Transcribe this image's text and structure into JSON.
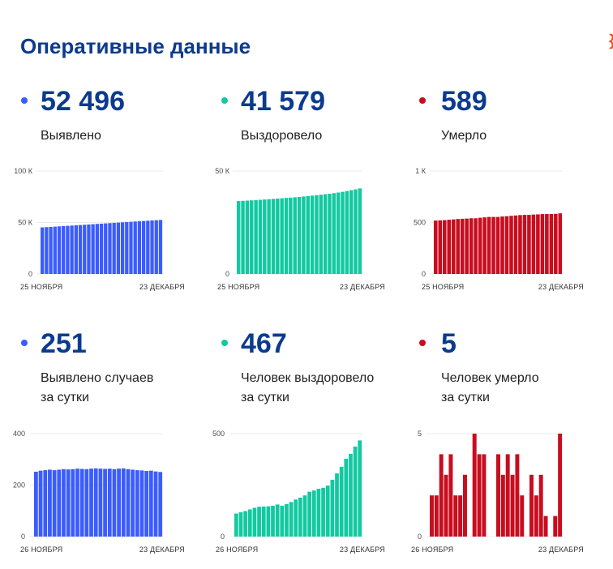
{
  "page": {
    "title": "Оперативные данные"
  },
  "colors": {
    "title": "#0d3a8c",
    "number": "#0b3b8f",
    "cases": "#3b5cff",
    "recovered": "#12c9a1",
    "deaths": "#c80d1f"
  },
  "cards": [
    {
      "value": "52 496",
      "label_lines": [
        "Выявлено"
      ],
      "color": "#3b5cff"
    },
    {
      "value": "41 579",
      "label_lines": [
        "Выздоровело"
      ],
      "color": "#12c9a1"
    },
    {
      "value": "589",
      "label_lines": [
        "Умерло"
      ],
      "color": "#c80d1f"
    },
    {
      "value": "251",
      "label_lines": [
        "Выявлено случаев",
        "за сутки"
      ],
      "color": "#3b5cff"
    },
    {
      "value": "467",
      "label_lines": [
        "Человек выздоровело",
        "за сутки"
      ],
      "color": "#12c9a1"
    },
    {
      "value": "5",
      "label_lines": [
        "Человек умерло",
        "за сутки"
      ],
      "color": "#c80d1f"
    }
  ],
  "chart_data": [
    {
      "type": "bar",
      "color": "#3b5cff",
      "grid": true,
      "x_ticks": [
        "25 НОЯБРЯ",
        "23 ДЕКАБРЯ"
      ],
      "ylim": [
        0,
        100000
      ],
      "y_ticks": [
        {
          "value": 0,
          "label": "0"
        },
        {
          "value": 50000,
          "label": "50 К"
        },
        {
          "value": 100000,
          "label": "100 К"
        }
      ],
      "values": [
        45215,
        45467,
        45723,
        45981,
        46241,
        46499,
        46759,
        47021,
        47282,
        47544,
        47808,
        48071,
        48333,
        48597,
        48862,
        49126,
        49389,
        49653,
        49915,
        50179,
        50444,
        50706,
        50966,
        51224,
        51481,
        51736,
        51992,
        52245,
        52496
      ]
    },
    {
      "type": "bar",
      "color": "#12c9a1",
      "grid": true,
      "x_ticks": [
        "25 НОЯБРЯ",
        "23 ДЕКАБРЯ"
      ],
      "ylim": [
        0,
        50000
      ],
      "y_ticks": [
        {
          "value": 0,
          "label": "0"
        },
        {
          "value": 50000,
          "label": "50 К"
        }
      ],
      "values": [
        35399,
        35511,
        35629,
        35753,
        35885,
        36025,
        36170,
        36316,
        36463,
        36613,
        36769,
        36919,
        37077,
        37245,
        37425,
        37614,
        37814,
        38032,
        38256,
        38488,
        38725,
        38973,
        39249,
        39556,
        39895,
        40273,
        40675,
        41112,
        41579
      ]
    },
    {
      "type": "bar",
      "color": "#c80d1f",
      "grid": true,
      "x_ticks": [
        "25 НОЯБРЯ",
        "23 ДЕКАБРЯ"
      ],
      "ylim": [
        0,
        1000
      ],
      "y_ticks": [
        {
          "value": 0,
          "label": "0"
        },
        {
          "value": 500,
          "label": "500"
        },
        {
          "value": 1000,
          "label": "1 К"
        }
      ],
      "values": [
        519,
        521,
        523,
        527,
        530,
        534,
        536,
        538,
        541,
        541,
        546,
        550,
        554,
        554,
        554,
        558,
        561,
        565,
        568,
        572,
        574,
        574,
        577,
        579,
        582,
        583,
        583,
        584,
        589
      ]
    },
    {
      "type": "bar",
      "color": "#3b5cff",
      "grid": true,
      "x_ticks": [
        "26 НОЯБРЯ",
        "23 ДЕКАБРЯ"
      ],
      "ylim": [
        0,
        400
      ],
      "y_ticks": [
        {
          "value": 0,
          "label": "0"
        },
        {
          "value": 200,
          "label": "200"
        },
        {
          "value": 400,
          "label": "400"
        }
      ],
      "values": [
        252,
        256,
        258,
        260,
        258,
        260,
        262,
        261,
        262,
        264,
        263,
        262,
        264,
        265,
        264,
        263,
        264,
        262,
        264,
        265,
        262,
        260,
        258,
        257,
        255,
        256,
        253,
        251
      ]
    },
    {
      "type": "bar",
      "color": "#12c9a1",
      "grid": true,
      "x_ticks": [
        "26 НОЯБРЯ",
        "23 ДЕКАБРЯ"
      ],
      "ylim": [
        0,
        500
      ],
      "y_ticks": [
        {
          "value": 0,
          "label": "0"
        },
        {
          "value": 500,
          "label": "500"
        }
      ],
      "values": [
        112,
        118,
        124,
        132,
        140,
        145,
        146,
        147,
        150,
        156,
        150,
        158,
        168,
        180,
        189,
        200,
        218,
        224,
        232,
        237,
        248,
        276,
        307,
        339,
        378,
        402,
        437,
        467
      ]
    },
    {
      "type": "bar",
      "color": "#c80d1f",
      "grid": true,
      "x_ticks": [
        "26 НОЯБРЯ",
        "23 ДЕКАБРЯ"
      ],
      "ylim": [
        0,
        5
      ],
      "y_ticks": [
        {
          "value": 0,
          "label": "0"
        },
        {
          "value": 5,
          "label": "5"
        }
      ],
      "values": [
        2,
        2,
        4,
        3,
        4,
        2,
        2,
        3,
        0,
        5,
        4,
        4,
        0,
        0,
        4,
        3,
        4,
        3,
        4,
        2,
        0,
        3,
        2,
        3,
        1,
        0,
        1,
        5
      ]
    }
  ]
}
